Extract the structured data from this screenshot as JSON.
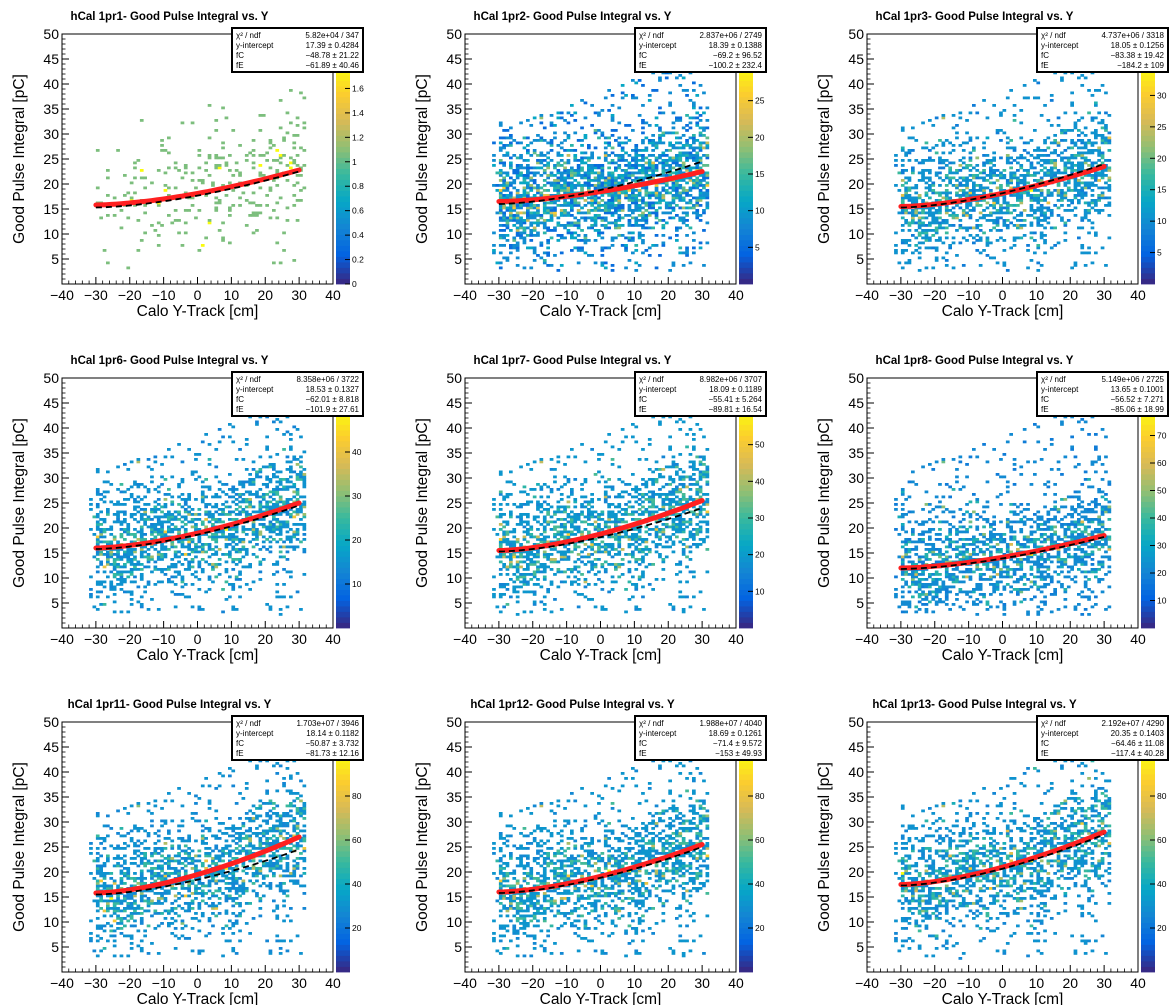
{
  "chart_data": [
    {
      "type": "heatmap",
      "title": "hCal 1pr1- Good Pulse Integral vs. Y",
      "xlabel": "Calo Y-Track [cm]",
      "ylabel": "Good Pulse Integral [pC]",
      "xlim": [
        -40,
        40
      ],
      "ylim": [
        0,
        50
      ],
      "xticks": [
        "−40",
        "−30",
        "−20",
        "−10",
        "0",
        "10",
        "20",
        "30",
        "40"
      ],
      "yticks": [
        "5",
        "10",
        "15",
        "20",
        "25",
        "30",
        "35",
        "40",
        "45",
        "50"
      ],
      "zmax": 1.8,
      "zticks": [
        "0",
        "0.2",
        "0.4",
        "0.6",
        "0.8",
        "1",
        "1.2",
        "1.4",
        "1.6"
      ],
      "density": "sparse",
      "points": 300,
      "fit": {
        "x": [
          -30,
          30
        ],
        "y_start": 15.8,
        "y_end": 22.8
      },
      "ref": {
        "x": [
          -30,
          30
        ],
        "y_start": 15.3,
        "y_end": 22.5
      },
      "stats": {
        "chi2_label": "χ² / ndf",
        "chi2": "5.82e+04 / 347",
        "yint_label": "y-intercept",
        "yint": "17.39 ± 0.4284",
        "fc_label": "fC",
        "fc": "−48.78 ± 21.22",
        "fe_label": "fE",
        "fe": "−61.89 ± 40.46"
      }
    },
    {
      "type": "heatmap",
      "title": "hCal 1pr2- Good Pulse Integral vs. Y",
      "xlabel": "Calo Y-Track [cm]",
      "ylabel": "Good Pulse Integral [pC]",
      "xlim": [
        -40,
        40
      ],
      "ylim": [
        0,
        50
      ],
      "xticks": [
        "−40",
        "−30",
        "−20",
        "−10",
        "0",
        "10",
        "20",
        "30",
        "40"
      ],
      "yticks": [
        "5",
        "10",
        "15",
        "20",
        "25",
        "30",
        "35",
        "40",
        "45",
        "50"
      ],
      "zmax": 30,
      "zticks": [
        "5",
        "10",
        "15",
        "20",
        "25"
      ],
      "density": "medium",
      "points": 4500,
      "fit": {
        "x": [
          -30,
          30
        ],
        "y_start": 16.5,
        "y_end": 22.5
      },
      "ref": {
        "x": [
          -30,
          30
        ],
        "y_start": 16.0,
        "y_end": 24.5
      },
      "stats": {
        "chi2_label": "χ² / ndf",
        "chi2": "2.837e+06 / 2749",
        "yint_label": "y-intercept",
        "yint": "18.39 ± 0.1388",
        "fc_label": "fC",
        "fc": "−69.2 ± 96.52",
        "fe_label": "fE",
        "fe": "−100.2 ± 232.4"
      }
    },
    {
      "type": "heatmap",
      "title": "hCal 1pr3- Good Pulse Integral vs. Y",
      "xlabel": "Calo Y-Track [cm]",
      "ylabel": "Good Pulse Integral [pC]",
      "xlim": [
        -40,
        40
      ],
      "ylim": [
        0,
        50
      ],
      "xticks": [
        "−40",
        "−30",
        "−20",
        "−10",
        "0",
        "10",
        "20",
        "30",
        "40"
      ],
      "yticks": [
        "5",
        "10",
        "15",
        "20",
        "25",
        "30",
        "35",
        "40",
        "45",
        "50"
      ],
      "zmax": 35,
      "zticks": [
        "5",
        "10",
        "15",
        "20",
        "25",
        "30"
      ],
      "density": "medium",
      "points": 4800,
      "fit": {
        "x": [
          -30,
          30
        ],
        "y_start": 15.5,
        "y_end": 23.5
      },
      "ref": {
        "x": [
          -30,
          30
        ],
        "y_start": 15.3,
        "y_end": 24.0
      },
      "stats": {
        "chi2_label": "χ² / ndf",
        "chi2": "4.737e+06 / 3318",
        "yint_label": "y-intercept",
        "yint": "18.05 ± 0.1256",
        "fc_label": "fC",
        "fc": "−83.38 ± 19.42",
        "fe_label": "fE",
        "fe": "−184.2 ± 109"
      }
    },
    {
      "type": "heatmap",
      "title": "hCal 1pr6- Good Pulse Integral vs. Y",
      "xlabel": "Calo Y-Track [cm]",
      "ylabel": "Good Pulse Integral [pC]",
      "xlim": [
        -40,
        40
      ],
      "ylim": [
        0,
        50
      ],
      "xticks": [
        "−40",
        "−30",
        "−20",
        "−10",
        "0",
        "10",
        "20",
        "30",
        "40"
      ],
      "yticks": [
        "5",
        "10",
        "15",
        "20",
        "25",
        "30",
        "35",
        "40",
        "45",
        "50"
      ],
      "zmax": 50,
      "zticks": [
        "10",
        "20",
        "30",
        "40"
      ],
      "density": "dense",
      "points": 6500,
      "fit": {
        "x": [
          -30,
          30
        ],
        "y_start": 16.0,
        "y_end": 25.0
      },
      "ref": {
        "x": [
          -30,
          30
        ],
        "y_start": 15.8,
        "y_end": 24.5
      },
      "stats": {
        "chi2_label": "χ² / ndf",
        "chi2": "8.358e+06 / 3722",
        "yint_label": "y-intercept",
        "yint": "18.53 ± 0.1327",
        "fc_label": "fC",
        "fc": "−62.01 ± 8.818",
        "fe_label": "fE",
        "fe": "−101.9 ± 27.61"
      }
    },
    {
      "type": "heatmap",
      "title": "hCal 1pr7- Good Pulse Integral vs. Y",
      "xlabel": "Calo Y-Track [cm]",
      "ylabel": "Good Pulse Integral [pC]",
      "xlim": [
        -40,
        40
      ],
      "ylim": [
        0,
        50
      ],
      "xticks": [
        "−40",
        "−30",
        "−20",
        "−10",
        "0",
        "10",
        "20",
        "30",
        "40"
      ],
      "yticks": [
        "5",
        "10",
        "15",
        "20",
        "25",
        "30",
        "35",
        "40",
        "45",
        "50"
      ],
      "zmax": 60,
      "zticks": [
        "10",
        "20",
        "30",
        "40",
        "50"
      ],
      "density": "dense",
      "points": 6500,
      "fit": {
        "x": [
          -30,
          30
        ],
        "y_start": 15.5,
        "y_end": 25.5
      },
      "ref": {
        "x": [
          -30,
          30
        ],
        "y_start": 15.3,
        "y_end": 24.0
      },
      "stats": {
        "chi2_label": "χ² / ndf",
        "chi2": "8.982e+06 / 3707",
        "yint_label": "y-intercept",
        "yint": "18.09 ± 0.1189",
        "fc_label": "fC",
        "fc": "−55.41 ± 5.264",
        "fe_label": "fE",
        "fe": "−89.81 ± 16.54"
      }
    },
    {
      "type": "heatmap",
      "title": "hCal 1pr8- Good Pulse Integral vs. Y",
      "xlabel": "Calo Y-Track [cm]",
      "ylabel": "Good Pulse Integral [pC]",
      "xlim": [
        -40,
        40
      ],
      "ylim": [
        0,
        50
      ],
      "xticks": [
        "−40",
        "−30",
        "−20",
        "−10",
        "0",
        "10",
        "20",
        "30",
        "40"
      ],
      "yticks": [
        "5",
        "10",
        "15",
        "20",
        "25",
        "30",
        "35",
        "40",
        "45",
        "50"
      ],
      "zmax": 80,
      "zticks": [
        "10",
        "20",
        "30",
        "40",
        "50",
        "60",
        "70"
      ],
      "density": "dense",
      "points": 6500,
      "fit": {
        "x": [
          -30,
          30
        ],
        "y_start": 12.0,
        "y_end": 18.5
      },
      "ref": {
        "x": [
          -30,
          30
        ],
        "y_start": 11.8,
        "y_end": 18.2
      },
      "stats": {
        "chi2_label": "χ² / ndf",
        "chi2": "5.149e+06 / 2725",
        "yint_label": "y-intercept",
        "yint": "13.65 ± 0.1001",
        "fc_label": "fC",
        "fc": "−56.52 ± 7.271",
        "fe_label": "fE",
        "fe": "−85.06 ± 18.99"
      }
    },
    {
      "type": "heatmap",
      "title": "hCal 1pr11- Good Pulse Integral vs. Y",
      "xlabel": "Calo Y-Track [cm]",
      "ylabel": "Good Pulse Integral [pC]",
      "xlim": [
        -40,
        40
      ],
      "ylim": [
        0,
        50
      ],
      "xticks": [
        "−40",
        "−30",
        "−20",
        "−10",
        "0",
        "10",
        "20",
        "30",
        "40"
      ],
      "yticks": [
        "5",
        "10",
        "15",
        "20",
        "25",
        "30",
        "35",
        "40",
        "45",
        "50"
      ],
      "zmax": 100,
      "zticks": [
        "20",
        "40",
        "60",
        "80"
      ],
      "density": "very-dense",
      "points": 8000,
      "fit": {
        "x": [
          -30,
          30
        ],
        "y_start": 15.8,
        "y_end": 27.0
      },
      "ref": {
        "x": [
          -30,
          30
        ],
        "y_start": 15.5,
        "y_end": 24.5
      },
      "stats": {
        "chi2_label": "χ² / ndf",
        "chi2": "1.703e+07 / 3946",
        "yint_label": "y-intercept",
        "yint": "18.14 ± 0.1182",
        "fc_label": "fC",
        "fc": "−50.87 ± 3.732",
        "fe_label": "fE",
        "fe": "−81.73 ± 12.16"
      }
    },
    {
      "type": "heatmap",
      "title": "hCal 1pr12- Good Pulse Integral vs. Y",
      "xlabel": "Calo Y-Track [cm]",
      "ylabel": "Good Pulse Integral [pC]",
      "xlim": [
        -40,
        40
      ],
      "ylim": [
        0,
        50
      ],
      "xticks": [
        "−40",
        "−30",
        "−20",
        "−10",
        "0",
        "10",
        "20",
        "30",
        "40"
      ],
      "yticks": [
        "5",
        "10",
        "15",
        "20",
        "25",
        "30",
        "35",
        "40",
        "45",
        "50"
      ],
      "zmax": 100,
      "zticks": [
        "20",
        "40",
        "60",
        "80"
      ],
      "density": "very-dense",
      "points": 8000,
      "fit": {
        "x": [
          -30,
          30
        ],
        "y_start": 16.0,
        "y_end": 25.5
      },
      "ref": {
        "x": [
          -30,
          30
        ],
        "y_start": 15.8,
        "y_end": 25.0
      },
      "stats": {
        "chi2_label": "χ² / ndf",
        "chi2": "1.988e+07 / 4040",
        "yint_label": "y-intercept",
        "yint": "18.69 ± 0.1261",
        "fc_label": "fC",
        "fc": "−71.4 ± 9.572",
        "fe_label": "fE",
        "fe": "−153 ± 49.93"
      }
    },
    {
      "type": "heatmap",
      "title": "hCal 1pr13- Good Pulse Integral vs. Y",
      "xlabel": "Calo Y-Track [cm]",
      "ylabel": "Good Pulse Integral [pC]",
      "xlim": [
        -40,
        40
      ],
      "ylim": [
        0,
        50
      ],
      "xticks": [
        "−40",
        "−30",
        "−20",
        "−10",
        "0",
        "10",
        "20",
        "30",
        "40"
      ],
      "yticks": [
        "5",
        "10",
        "15",
        "20",
        "25",
        "30",
        "35",
        "40",
        "45",
        "50"
      ],
      "zmax": 100,
      "zticks": [
        "20",
        "40",
        "60",
        "80"
      ],
      "density": "very-dense",
      "points": 8000,
      "fit": {
        "x": [
          -30,
          30
        ],
        "y_start": 17.5,
        "y_end": 28.0
      },
      "ref": {
        "x": [
          -30,
          30
        ],
        "y_start": 17.3,
        "y_end": 27.5
      },
      "stats": {
        "chi2_label": "χ² / ndf",
        "chi2": "2.192e+07 / 4290",
        "yint_label": "y-intercept",
        "yint": "20.35 ± 0.1403",
        "fc_label": "fC",
        "fc": "−64.46 ± 11.08",
        "fe_label": "fE",
        "fe": "−117.4 ± 40.28"
      }
    }
  ],
  "colors": {
    "fit": "#ff2020",
    "ref": "#000000",
    "palette": [
      "#352a87",
      "#0363e1",
      "#1485d4",
      "#06a7c6",
      "#38b99e",
      "#92bf73",
      "#d9ba56",
      "#fcce2e",
      "#f9fb0e"
    ]
  }
}
